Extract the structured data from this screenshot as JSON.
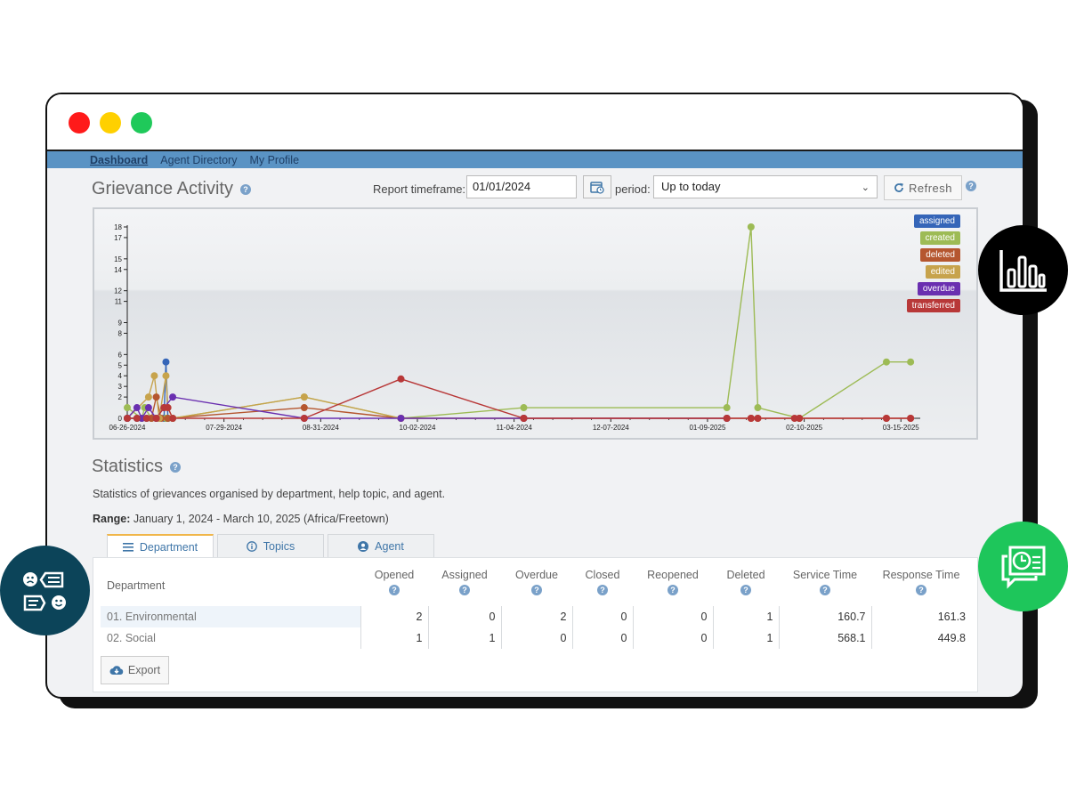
{
  "nav": {
    "items": [
      "Dashboard",
      "Agent Directory",
      "My Profile"
    ]
  },
  "activity": {
    "title": "Grievance Activity",
    "timeframe_label": "Report timeframe:",
    "timeframe_value": "01/01/2024",
    "period_label": "period:",
    "period_value": "Up to today",
    "refresh_label": "Refresh"
  },
  "chart_data": {
    "type": "line",
    "title": "Grievance Activity",
    "x_ticks": [
      "06-26-2024",
      "07-29-2024",
      "08-31-2024",
      "10-02-2024",
      "11-04-2024",
      "12-07-2024",
      "01-09-2025",
      "02-10-2025",
      "03-15-2025"
    ],
    "y_ticks": [
      0,
      2,
      3,
      4,
      5,
      6,
      8,
      9,
      11,
      12,
      14,
      15,
      17,
      18
    ],
    "ylim": [
      0,
      18
    ],
    "xlim": [
      0,
      8.2
    ],
    "legend": [
      "assigned",
      "created",
      "deleted",
      "edited",
      "overdue",
      "transferred"
    ],
    "series": [
      {
        "name": "assigned",
        "color": "#3565b8",
        "points": [
          [
            0,
            0
          ],
          [
            0.1,
            0
          ],
          [
            0.2,
            0
          ],
          [
            0.3,
            0
          ],
          [
            0.38,
            0
          ],
          [
            0.4,
            5.3
          ],
          [
            0.42,
            0
          ],
          [
            0.47,
            0
          ]
        ]
      },
      {
        "name": "created",
        "color": "#9dbb55",
        "points": [
          [
            0,
            1
          ],
          [
            0.15,
            0
          ],
          [
            0.18,
            1
          ],
          [
            0.25,
            0
          ],
          [
            0.4,
            0
          ],
          [
            0.47,
            0
          ],
          [
            1.83,
            2
          ],
          [
            2.83,
            0
          ],
          [
            4.1,
            1
          ],
          [
            6.2,
            1
          ],
          [
            6.45,
            18
          ],
          [
            6.52,
            1
          ],
          [
            6.95,
            0
          ],
          [
            7.85,
            5.3
          ],
          [
            8.1,
            5.3
          ]
        ]
      },
      {
        "name": "deleted",
        "color": "#b5562f",
        "points": [
          [
            0,
            0
          ],
          [
            0.25,
            0
          ],
          [
            0.3,
            2
          ],
          [
            0.35,
            0
          ],
          [
            0.42,
            0
          ],
          [
            1.83,
            1
          ],
          [
            2.83,
            0
          ],
          [
            4.1,
            0
          ],
          [
            6.2,
            0
          ],
          [
            6.45,
            0
          ],
          [
            6.52,
            0
          ],
          [
            6.95,
            0
          ],
          [
            7.85,
            0
          ],
          [
            8.1,
            0
          ]
        ]
      },
      {
        "name": "edited",
        "color": "#c7a34c",
        "points": [
          [
            0,
            0
          ],
          [
            0.22,
            2
          ],
          [
            0.28,
            4
          ],
          [
            0.33,
            0
          ],
          [
            0.4,
            4
          ],
          [
            0.42,
            1
          ],
          [
            0.47,
            0
          ],
          [
            1.83,
            2
          ],
          [
            2.83,
            0
          ],
          [
            4.1,
            0
          ]
        ]
      },
      {
        "name": "overdue",
        "color": "#6a2fb0",
        "points": [
          [
            0,
            0
          ],
          [
            0.1,
            1
          ],
          [
            0.15,
            0
          ],
          [
            0.22,
            1
          ],
          [
            0.3,
            0
          ],
          [
            0.38,
            1
          ],
          [
            0.47,
            2
          ],
          [
            1.83,
            0
          ],
          [
            2.83,
            0
          ],
          [
            4.1,
            0
          ],
          [
            6.2,
            0
          ]
        ]
      },
      {
        "name": "transferred",
        "color": "#b83838",
        "points": [
          [
            0,
            0
          ],
          [
            0.1,
            0
          ],
          [
            0.2,
            0
          ],
          [
            0.3,
            0
          ],
          [
            0.38,
            1
          ],
          [
            0.42,
            1
          ],
          [
            0.47,
            0
          ],
          [
            1.83,
            0
          ],
          [
            2.83,
            3.7
          ],
          [
            4.1,
            0
          ],
          [
            6.2,
            0
          ],
          [
            6.45,
            0
          ],
          [
            6.52,
            0
          ],
          [
            6.9,
            0
          ],
          [
            6.95,
            0
          ],
          [
            7.85,
            0
          ],
          [
            8.1,
            0
          ]
        ]
      }
    ]
  },
  "statistics": {
    "title": "Statistics",
    "description": "Statistics of grievances organised by department, help topic, and agent.",
    "range_label": "Range:",
    "range_value": "January 1, 2024 - March 10, 2025 (Africa/Freetown)",
    "tabs": [
      "Department",
      "Topics",
      "Agent"
    ],
    "columns": [
      "Department",
      "Opened",
      "Assigned",
      "Overdue",
      "Closed",
      "Reopened",
      "Deleted",
      "Service Time",
      "Response Time"
    ],
    "rows": [
      [
        "01. Environmental",
        "2",
        "0",
        "2",
        "0",
        "0",
        "1",
        "160.7",
        "161.3"
      ],
      [
        "02. Social",
        "1",
        "1",
        "0",
        "0",
        "0",
        "1",
        "568.1",
        "449.8"
      ]
    ],
    "export_label": "Export"
  },
  "colors": {
    "navbar": "#5a93c4",
    "accent_tab": "#f0b64a",
    "support_badge": "#1ec65b",
    "feedback_badge": "#0c4459"
  }
}
